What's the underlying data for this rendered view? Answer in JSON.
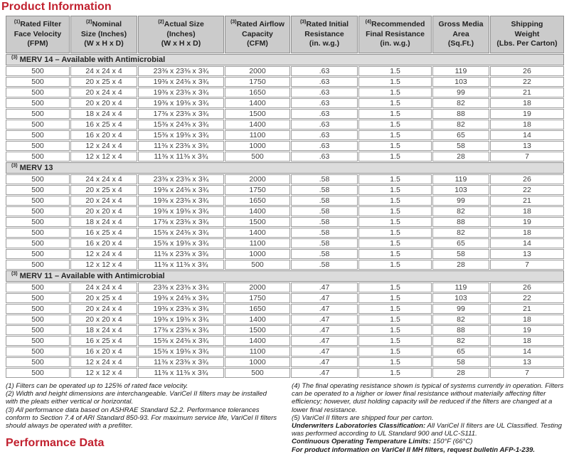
{
  "page": {
    "title": "Product Information",
    "performance_title": "Performance Data"
  },
  "accent_color": "#c1202e",
  "table": {
    "columns": [
      {
        "sup": "(1)",
        "label": "Rated Filter\nFace Velocity\n(FPM)"
      },
      {
        "sup": "(2)",
        "label": "Nominal\nSize (Inches)\n(W x H x D)"
      },
      {
        "sup": "(2)",
        "label": "Actual Size\n(Inches)\n(W x H x D)"
      },
      {
        "sup": "(3)",
        "label": "Rated Airflow\nCapacity\n(CFM)"
      },
      {
        "sup": "(3)",
        "label": "Rated Initial\nResistance\n(in. w.g.)"
      },
      {
        "sup": "(4)",
        "label": "Recommended\nFinal Resistance\n(in. w.g.)"
      },
      {
        "sup": "",
        "label": "Gross Media\nArea\n(Sq.Ft.)"
      },
      {
        "sup": "",
        "label": "Shipping\nWeight\n(Lbs. Per Carton)"
      }
    ],
    "sections": [
      {
        "sup": "(3)",
        "title": "MERV 14 – Available with Antimicrobial",
        "rows": [
          [
            "500",
            "24 x 24 x 4",
            "23⅜ x 23⅜ x 3¾",
            "2000",
            ".63",
            "1.5",
            "119",
            "26"
          ],
          [
            "500",
            "20 x 25 x 4",
            "19⅜ x 24⅜ x 3¾",
            "1750",
            ".63",
            "1.5",
            "103",
            "22"
          ],
          [
            "500",
            "20 x 24 x 4",
            "19⅜ x 23⅜ x 3¾",
            "1650",
            ".63",
            "1.5",
            "99",
            "21"
          ],
          [
            "500",
            "20 x 20 x 4",
            "19⅜ x 19⅜ x 3¾",
            "1400",
            ".63",
            "1.5",
            "82",
            "18"
          ],
          [
            "500",
            "18 x 24 x 4",
            "17⅜ x 23⅜ x 3¾",
            "1500",
            ".63",
            "1.5",
            "88",
            "19"
          ],
          [
            "500",
            "16 x 25 x 4",
            "15⅜ x 24⅜ x 3¾",
            "1400",
            ".63",
            "1.5",
            "82",
            "18"
          ],
          [
            "500",
            "16 x 20 x 4",
            "15⅜ x 19⅜ x 3¾",
            "1100",
            ".63",
            "1.5",
            "65",
            "14"
          ],
          [
            "500",
            "12 x 24 x 4",
            "11⅜ x 23⅜ x 3¾",
            "1000",
            ".63",
            "1.5",
            "58",
            "13"
          ],
          [
            "500",
            "12 x 12 x 4",
            "11⅜ x 11⅜ x 3¾",
            "500",
            ".63",
            "1.5",
            "28",
            "7"
          ]
        ]
      },
      {
        "sup": "(3)",
        "title": "MERV 13",
        "rows": [
          [
            "500",
            "24 x 24 x 4",
            "23⅜ x 23⅜ x 3¾",
            "2000",
            ".58",
            "1.5",
            "119",
            "26"
          ],
          [
            "500",
            "20 x 25 x 4",
            "19⅜ x 24⅜ x 3¾",
            "1750",
            ".58",
            "1.5",
            "103",
            "22"
          ],
          [
            "500",
            "20 x 24 x 4",
            "19⅜ x 23⅜ x 3¾",
            "1650",
            ".58",
            "1.5",
            "99",
            "21"
          ],
          [
            "500",
            "20 x 20 x 4",
            "19⅜ x 19⅜ x 3¾",
            "1400",
            ".58",
            "1.5",
            "82",
            "18"
          ],
          [
            "500",
            "18 x 24 x 4",
            "17⅜ x 23⅜ x 3¾",
            "1500",
            ".58",
            "1.5",
            "88",
            "19"
          ],
          [
            "500",
            "16 x 25 x 4",
            "15⅜ x 24⅜ x 3¾",
            "1400",
            ".58",
            "1.5",
            "82",
            "18"
          ],
          [
            "500",
            "16 x 20 x 4",
            "15⅜ x 19⅜ x 3¾",
            "1100",
            ".58",
            "1.5",
            "65",
            "14"
          ],
          [
            "500",
            "12 x 24 x 4",
            "11⅜ x 23⅜ x 3¾",
            "1000",
            ".58",
            "1.5",
            "58",
            "13"
          ],
          [
            "500",
            "12 x 12 x 4",
            "11⅜ x 11⅜ x 3¾",
            "500",
            ".58",
            "1.5",
            "28",
            "7"
          ]
        ]
      },
      {
        "sup": "(3)",
        "title": "MERV 11 – Available with Antimicrobial",
        "rows": [
          [
            "500",
            "24 x 24 x 4",
            "23⅜ x 23⅜ x 3¾",
            "2000",
            ".47",
            "1.5",
            "119",
            "26"
          ],
          [
            "500",
            "20 x 25 x 4",
            "19⅜ x 24⅜ x 3¾",
            "1750",
            ".47",
            "1.5",
            "103",
            "22"
          ],
          [
            "500",
            "20 x 24 x 4",
            "19⅜ x 23⅜ x 3¾",
            "1650",
            ".47",
            "1.5",
            "99",
            "21"
          ],
          [
            "500",
            "20 x 20 x 4",
            "19⅜ x 19⅜ x 3¾",
            "1400",
            ".47",
            "1.5",
            "82",
            "18"
          ],
          [
            "500",
            "18 x 24 x 4",
            "17⅜ x 23⅜ x 3¾",
            "1500",
            ".47",
            "1.5",
            "88",
            "19"
          ],
          [
            "500",
            "16 x 25 x 4",
            "15⅜ x 24⅜ x 3¾",
            "1400",
            ".47",
            "1.5",
            "82",
            "18"
          ],
          [
            "500",
            "16 x 20 x 4",
            "15⅜ x 19⅜ x 3¾",
            "1100",
            ".47",
            "1.5",
            "65",
            "14"
          ],
          [
            "500",
            "12 x 24 x 4",
            "11⅜ x 23⅜ x 3¾",
            "1000",
            ".47",
            "1.5",
            "58",
            "13"
          ],
          [
            "500",
            "12 x 12 x 4",
            "11⅜ x 11⅜ x 3¾",
            "500",
            ".47",
            "1.5",
            "28",
            "7"
          ]
        ]
      }
    ]
  },
  "footnotes_left": [
    "(1) Filters can be operated up to 125% of rated face velocity.",
    "(2) Width and height dimensions are interchangeable. VariCel II filters may be installed with the pleats either vertical or horizontal.",
    "(3) All performance data based on ASHRAE Standard 52.2. Performance tolerances conform to Section 7.4 of ARI Standard 850-93. For maximum service life, VariCel II filters should always be operated with a prefilter."
  ],
  "footnotes_right": [
    {
      "lead": "",
      "text": "(4) The final operating resistance shown is typical of systems currently in operation. Filters can be operated to a higher or lower final resistance without materially affecting filter efficiency; however, dust holding capacity will be reduced if the filters are changed at a lower final resistance."
    },
    {
      "lead": "",
      "text": "(5) VariCel II filters are shipped four per carton."
    },
    {
      "lead": "Underwriters Laboratories Classification:",
      "text": " All VariCel II filters are UL Classified. Testing was performed according to UL Standard 900 and ULC-S111."
    },
    {
      "lead": "Continuous Operating Temperature Limits:",
      "text": " 150°F (66°C)"
    },
    {
      "lead": "For product information on VariCel II MH filters, request bulletin AFP-1-239.",
      "text": ""
    }
  ]
}
